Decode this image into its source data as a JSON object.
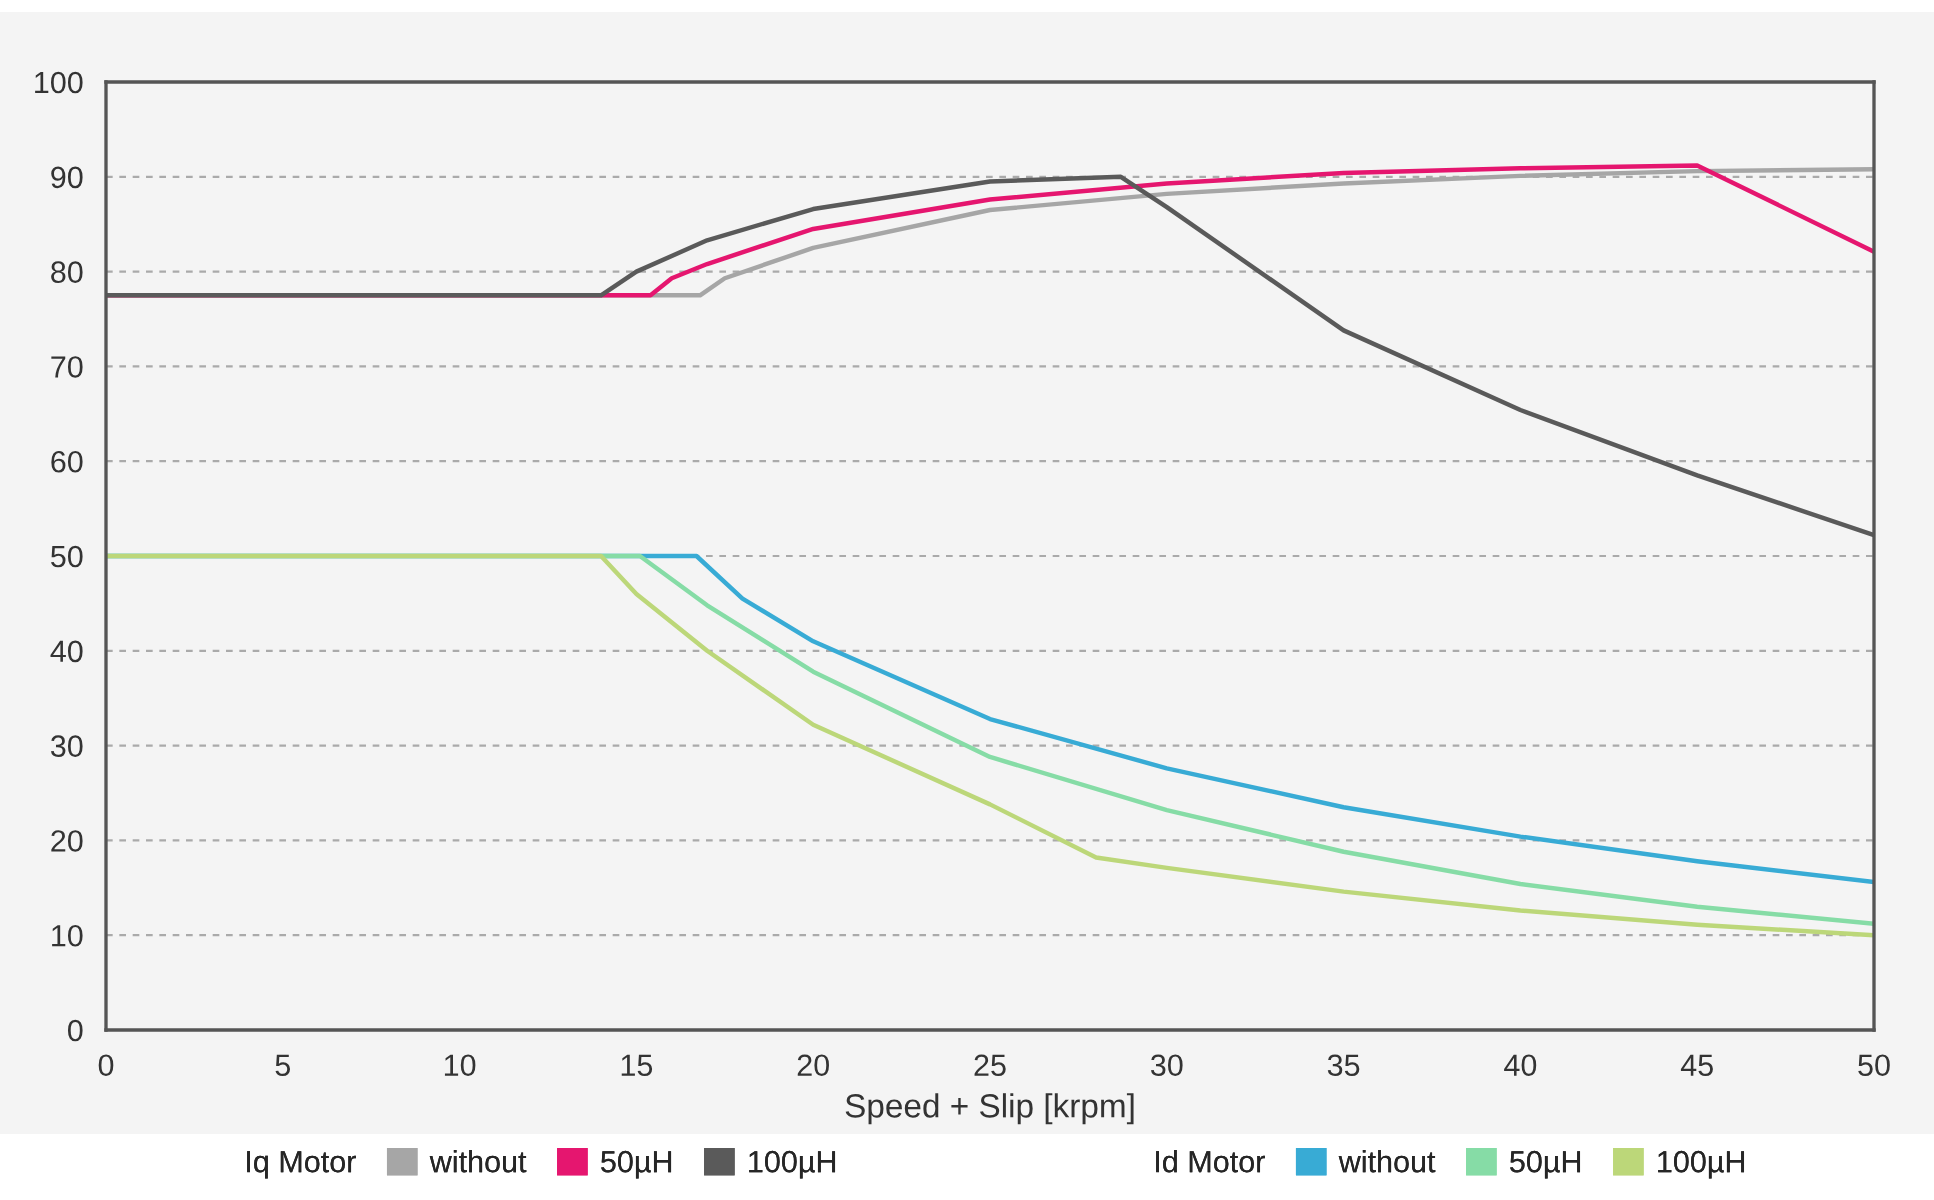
{
  "chart_data": {
    "type": "line",
    "xlabel": "Speed + Slip [krpm]",
    "xlim": [
      0,
      50
    ],
    "xticks": [
      0,
      5,
      10,
      15,
      20,
      25,
      30,
      35,
      40,
      45,
      50
    ],
    "ylim": [
      0,
      100
    ],
    "yticks": [
      0,
      10,
      20,
      30,
      40,
      50,
      60,
      70,
      80,
      90,
      100
    ],
    "grid": "y",
    "legend": "bottom",
    "marker": "none",
    "line_style": "solid",
    "annotations": [
      "Iq Motor",
      "Id Motor"
    ],
    "series": [
      {
        "name": "without",
        "color": "#a6a6a6",
        "x": [
          0,
          16.8,
          17.5,
          20,
          25,
          30,
          35,
          40,
          45,
          50
        ],
        "values": [
          77.5,
          77.5,
          79.3,
          82.5,
          86.5,
          88.2,
          89.3,
          90.1,
          90.6,
          90.8
        ]
      },
      {
        "name": "50µH",
        "color": "#e5166f",
        "x": [
          0,
          15.4,
          16,
          17,
          20,
          25,
          30,
          35,
          40,
          45,
          50
        ],
        "values": [
          77.5,
          77.5,
          79.3,
          80.8,
          84.5,
          87.6,
          89.3,
          90.4,
          90.9,
          91.2,
          82.1
        ]
      },
      {
        "name": "100µH",
        "color": "#5a5a5a",
        "x": [
          0,
          14,
          15,
          17,
          20,
          25,
          28.7,
          30,
          35,
          40,
          45,
          50
        ],
        "values": [
          77.5,
          77.5,
          80,
          83.3,
          86.6,
          89.5,
          90,
          86.8,
          73.8,
          65.4,
          58.5,
          52.2
        ]
      },
      {
        "name": "without",
        "color": "#38abd5",
        "x": [
          0,
          16.7,
          18,
          20,
          25,
          30,
          35,
          40,
          45,
          50
        ],
        "values": [
          50,
          50,
          45.5,
          41,
          32.8,
          27.6,
          23.5,
          20.4,
          17.8,
          15.6
        ]
      },
      {
        "name": "50µH",
        "color": "#86dca6",
        "x": [
          0,
          15.1,
          17,
          20,
          25,
          30,
          35,
          40,
          45,
          50
        ],
        "values": [
          50,
          50,
          44.8,
          37.8,
          28.8,
          23.2,
          18.8,
          15.4,
          13,
          11.2
        ]
      },
      {
        "name": "100µH",
        "color": "#bcd779",
        "x": [
          0,
          14,
          15,
          17,
          20,
          25,
          28,
          30,
          35,
          40,
          45,
          50
        ],
        "values": [
          50,
          50,
          46,
          40,
          32.2,
          23.8,
          18.2,
          17.1,
          14.6,
          12.6,
          11.1,
          10
        ]
      }
    ]
  }
}
